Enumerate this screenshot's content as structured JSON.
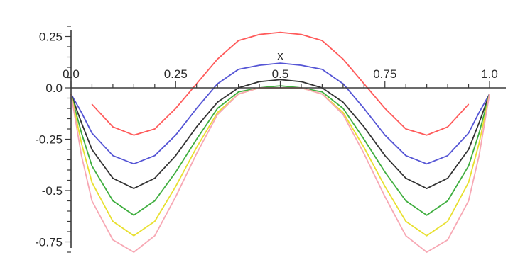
{
  "chart_data": {
    "type": "line",
    "title": "",
    "xlabel": "x",
    "ylabel": "",
    "xlim": [
      0,
      1
    ],
    "ylim": [
      -0.82,
      0.3
    ],
    "grid": false,
    "legend": "none",
    "x_ticks": [
      {
        "value": 0.0,
        "label": "0.0"
      },
      {
        "value": 0.25,
        "label": "0.25"
      },
      {
        "value": 0.5,
        "label": "0.5"
      },
      {
        "value": 0.75,
        "label": "0.75"
      },
      {
        "value": 1.0,
        "label": "1.0"
      }
    ],
    "y_ticks": [
      {
        "value": 0.25,
        "label": "0.25"
      },
      {
        "value": 0.0,
        "label": "0.0"
      },
      {
        "value": -0.25,
        "label": "-0.25"
      },
      {
        "value": -0.5,
        "label": "-0.5"
      },
      {
        "value": -0.75,
        "label": "-0.75"
      }
    ],
    "x": [
      0.0,
      0.025,
      0.05,
      0.1,
      0.15,
      0.2,
      0.25,
      0.3,
      0.35,
      0.4,
      0.45,
      0.5,
      0.55,
      0.6,
      0.65,
      0.7,
      0.75,
      0.8,
      0.85,
      0.9,
      0.95,
      0.975,
      1.0
    ],
    "series": [
      {
        "color": "#ff5a5a",
        "values": [
          null,
          null,
          -0.08,
          -0.19,
          -0.23,
          -0.2,
          -0.1,
          0.02,
          0.14,
          0.23,
          0.26,
          0.27,
          0.26,
          0.23,
          0.14,
          0.02,
          -0.1,
          -0.2,
          -0.23,
          -0.19,
          -0.08,
          null,
          null
        ]
      },
      {
        "color": "#5555d5",
        "values": [
          -0.03,
          -0.12,
          -0.22,
          -0.33,
          -0.37,
          -0.33,
          -0.23,
          -0.1,
          0.02,
          0.09,
          0.11,
          0.12,
          0.11,
          0.09,
          0.02,
          -0.1,
          -0.23,
          -0.33,
          -0.37,
          -0.33,
          -0.22,
          -0.12,
          -0.03
        ]
      },
      {
        "color": "#333333",
        "values": [
          -0.03,
          -0.17,
          -0.3,
          -0.44,
          -0.49,
          -0.44,
          -0.33,
          -0.19,
          -0.07,
          0.0,
          0.03,
          0.04,
          0.03,
          0.0,
          -0.07,
          -0.19,
          -0.33,
          -0.44,
          -0.49,
          -0.44,
          -0.3,
          -0.17,
          -0.03
        ]
      },
      {
        "color": "#3fae3f",
        "values": [
          -0.03,
          -0.22,
          -0.38,
          -0.55,
          -0.62,
          -0.55,
          -0.41,
          -0.25,
          -0.1,
          -0.02,
          0.0,
          0.01,
          0.0,
          -0.02,
          -0.1,
          -0.25,
          -0.41,
          -0.55,
          -0.62,
          -0.55,
          -0.38,
          -0.22,
          -0.03
        ]
      },
      {
        "color": "#e8e030",
        "values": [
          -0.03,
          -0.27,
          -0.46,
          -0.65,
          -0.72,
          -0.65,
          -0.48,
          -0.29,
          -0.12,
          -0.03,
          0.0,
          0.0,
          0.0,
          -0.03,
          -0.12,
          -0.29,
          -0.48,
          -0.65,
          -0.72,
          -0.65,
          -0.46,
          -0.27,
          -0.03
        ]
      },
      {
        "color": "#f7a8b4",
        "values": [
          -0.03,
          -0.33,
          -0.55,
          -0.74,
          -0.8,
          -0.72,
          -0.53,
          -0.32,
          -0.13,
          -0.03,
          0.0,
          0.0,
          0.0,
          -0.03,
          -0.13,
          -0.32,
          -0.53,
          -0.72,
          -0.8,
          -0.74,
          -0.55,
          -0.33,
          -0.03
        ]
      }
    ]
  }
}
